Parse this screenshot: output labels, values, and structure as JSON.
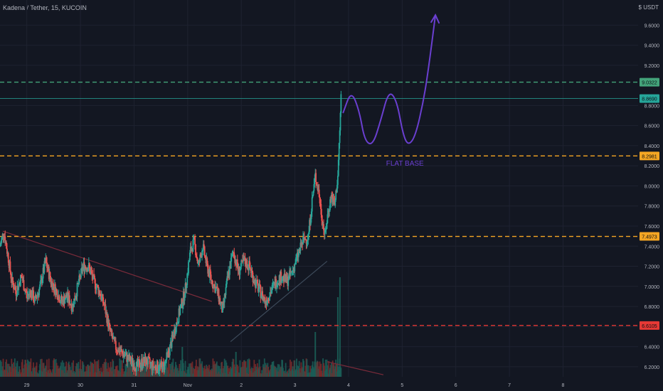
{
  "header": {
    "title": "Kadena / Tether, 15, KUCOIN",
    "currency": "$ USDT"
  },
  "colors": {
    "background": "#131722",
    "grid": "#1e2230",
    "axis_text": "#b2b5be",
    "up": "#26a69a",
    "down": "#ef5350",
    "volume_up": "#1b5e57",
    "volume_down": "#7a2a2a",
    "level_green": "#43a37a",
    "level_orange": "#f5a623",
    "level_red": "#e53935",
    "drawing_purple": "#6a3fd0",
    "trendline_red": "#7b2b3a",
    "trendline_gray": "#3d4a5a"
  },
  "chart_data": {
    "type": "line",
    "title": "Kadena / Tether, 15, KUCOIN",
    "ylabel": "$ USDT",
    "ylim": [
      6.1,
      9.85
    ],
    "xlim": [
      0,
      11.9
    ],
    "grid": true,
    "y_ticks": [
      "6.2000",
      "6.4000",
      "6.6000",
      "6.8000",
      "7.0000",
      "7.2000",
      "7.4000",
      "7.6000",
      "7.8000",
      "8.0000",
      "8.2000",
      "8.4000",
      "8.6000",
      "8.8000",
      "9.2000",
      "9.4000",
      "9.6000"
    ],
    "x_ticks": [
      {
        "label": "29",
        "x": 0.5
      },
      {
        "label": "30",
        "x": 1.5
      },
      {
        "label": "31",
        "x": 2.5
      },
      {
        "label": "Nov",
        "x": 3.5
      },
      {
        "label": "2",
        "x": 4.5
      },
      {
        "label": "3",
        "x": 5.5
      },
      {
        "label": "4",
        "x": 6.5
      },
      {
        "label": "5",
        "x": 7.5
      },
      {
        "label": "6",
        "x": 8.5
      },
      {
        "label": "7",
        "x": 9.5
      },
      {
        "label": "8",
        "x": 10.5
      }
    ],
    "price_path": [
      [
        0.0,
        7.4
      ],
      [
        0.07,
        7.55
      ],
      [
        0.15,
        7.3
      ],
      [
        0.22,
        7.05
      ],
      [
        0.3,
        6.95
      ],
      [
        0.4,
        7.1
      ],
      [
        0.5,
        6.9
      ],
      [
        0.58,
        6.95
      ],
      [
        0.65,
        6.85
      ],
      [
        0.75,
        7.0
      ],
      [
        0.85,
        7.25
      ],
      [
        0.95,
        7.05
      ],
      [
        1.05,
        6.95
      ],
      [
        1.15,
        6.85
      ],
      [
        1.25,
        6.9
      ],
      [
        1.35,
        6.8
      ],
      [
        1.45,
        7.0
      ],
      [
        1.55,
        7.2
      ],
      [
        1.65,
        7.2
      ],
      [
        1.75,
        7.05
      ],
      [
        1.85,
        6.95
      ],
      [
        1.95,
        6.8
      ],
      [
        2.05,
        6.55
      ],
      [
        2.15,
        6.4
      ],
      [
        2.25,
        6.35
      ],
      [
        2.35,
        6.3
      ],
      [
        2.45,
        6.25
      ],
      [
        2.55,
        6.2
      ],
      [
        2.65,
        6.25
      ],
      [
        2.75,
        6.25
      ],
      [
        2.85,
        6.2
      ],
      [
        2.95,
        6.2
      ],
      [
        3.05,
        6.2
      ],
      [
        3.15,
        6.35
      ],
      [
        3.25,
        6.55
      ],
      [
        3.35,
        6.75
      ],
      [
        3.45,
        6.95
      ],
      [
        3.55,
        7.35
      ],
      [
        3.62,
        7.45
      ],
      [
        3.7,
        7.2
      ],
      [
        3.78,
        7.4
      ],
      [
        3.86,
        7.2
      ],
      [
        3.95,
        7.05
      ],
      [
        4.05,
        6.95
      ],
      [
        4.15,
        6.75
      ],
      [
        4.25,
        7.1
      ],
      [
        4.35,
        7.35
      ],
      [
        4.45,
        7.15
      ],
      [
        4.55,
        7.25
      ],
      [
        4.65,
        7.2
      ],
      [
        4.75,
        7.05
      ],
      [
        4.85,
        6.95
      ],
      [
        4.95,
        6.85
      ],
      [
        5.05,
        6.95
      ],
      [
        5.15,
        7.05
      ],
      [
        5.25,
        7.1
      ],
      [
        5.35,
        7.05
      ],
      [
        5.45,
        7.15
      ],
      [
        5.55,
        7.3
      ],
      [
        5.65,
        7.45
      ],
      [
        5.75,
        7.5
      ],
      [
        5.82,
        7.85
      ],
      [
        5.88,
        8.1
      ],
      [
        5.94,
        7.95
      ],
      [
        6.0,
        7.7
      ],
      [
        6.06,
        7.5
      ],
      [
        6.12,
        7.75
      ],
      [
        6.18,
        7.9
      ],
      [
        6.24,
        7.8
      ],
      [
        6.3,
        8.1
      ],
      [
        6.34,
        8.6
      ],
      [
        6.36,
        8.9
      ]
    ],
    "price_levels": [
      {
        "label": "9.0322",
        "value": 9.0322,
        "style": "dashed",
        "color": "#43a37a",
        "tag_bg": "#43a37a"
      },
      {
        "label": "8.8690",
        "value": 8.869,
        "style": "solid",
        "color": "#26a69a",
        "tag_bg": "#26a69a"
      },
      {
        "label": "8.2981",
        "value": 8.2981,
        "style": "dashed",
        "color": "#f5a623",
        "tag_bg": "#f5a623"
      },
      {
        "label": "7.4973",
        "value": 7.4973,
        "style": "dashed",
        "color": "#f5a623",
        "tag_bg": "#f5a623"
      },
      {
        "label": "6.6105",
        "value": 6.6105,
        "style": "dashed",
        "color": "#e53935",
        "tag_bg": "#e53935"
      }
    ],
    "annotations": [
      {
        "text": "FLAT BASE",
        "x": 7.2,
        "y": 8.2
      }
    ],
    "projection_path": [
      [
        6.4,
        8.73
      ],
      [
        6.55,
        8.95
      ],
      [
        6.7,
        8.75
      ],
      [
        6.8,
        8.45
      ],
      [
        6.95,
        8.4
      ],
      [
        7.1,
        8.65
      ],
      [
        7.25,
        8.95
      ],
      [
        7.4,
        8.85
      ],
      [
        7.52,
        8.5
      ],
      [
        7.62,
        8.4
      ],
      [
        7.75,
        8.5
      ],
      [
        7.9,
        8.85
      ],
      [
        8.0,
        9.2
      ],
      [
        8.12,
        9.7
      ]
    ],
    "trend_lines": [
      {
        "from": [
          0.05,
          7.55
        ],
        "to": [
          3.95,
          6.85
        ],
        "color": "#7b2b3a"
      },
      {
        "from": [
          4.3,
          6.45
        ],
        "to": [
          6.1,
          7.25
        ],
        "color": "#3d4a5a"
      },
      {
        "from": [
          6.1,
          6.25
        ],
        "to": [
          7.15,
          6.12
        ],
        "color": "#7b2b3a"
      }
    ],
    "volume_spikes": [
      {
        "x": 5.88,
        "v": 0.45
      },
      {
        "x": 6.3,
        "v": 0.8
      },
      {
        "x": 6.34,
        "v": 1.0
      },
      {
        "x": 3.4,
        "v": 0.3
      },
      {
        "x": 4.4,
        "v": 0.25
      }
    ]
  }
}
